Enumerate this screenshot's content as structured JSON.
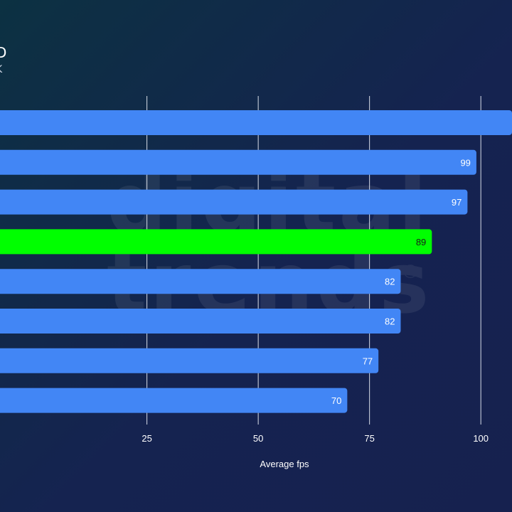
{
  "header": {
    "title_fragment": "D",
    "subtitle_fragment": "K"
  },
  "watermark": {
    "line1": "digital",
    "line2": "trends",
    "registered": "®"
  },
  "colors": {
    "bar_default": "#4286f5",
    "bar_highlight": "#00ff00",
    "gridline": "#d8dde8",
    "tick_label": "#ffffff"
  },
  "chart_data": {
    "type": "bar",
    "orientation": "horizontal",
    "values": [
      107,
      99,
      97,
      89,
      82,
      82,
      77,
      70
    ],
    "value_labels": [
      "",
      "99",
      "97",
      "89",
      "82",
      "82",
      "77",
      "70"
    ],
    "highlight_index": 3,
    "xlabel": "Average fps",
    "xlim": [
      -8,
      107
    ],
    "xticks": [
      25,
      50,
      75,
      100
    ],
    "grid": true
  }
}
